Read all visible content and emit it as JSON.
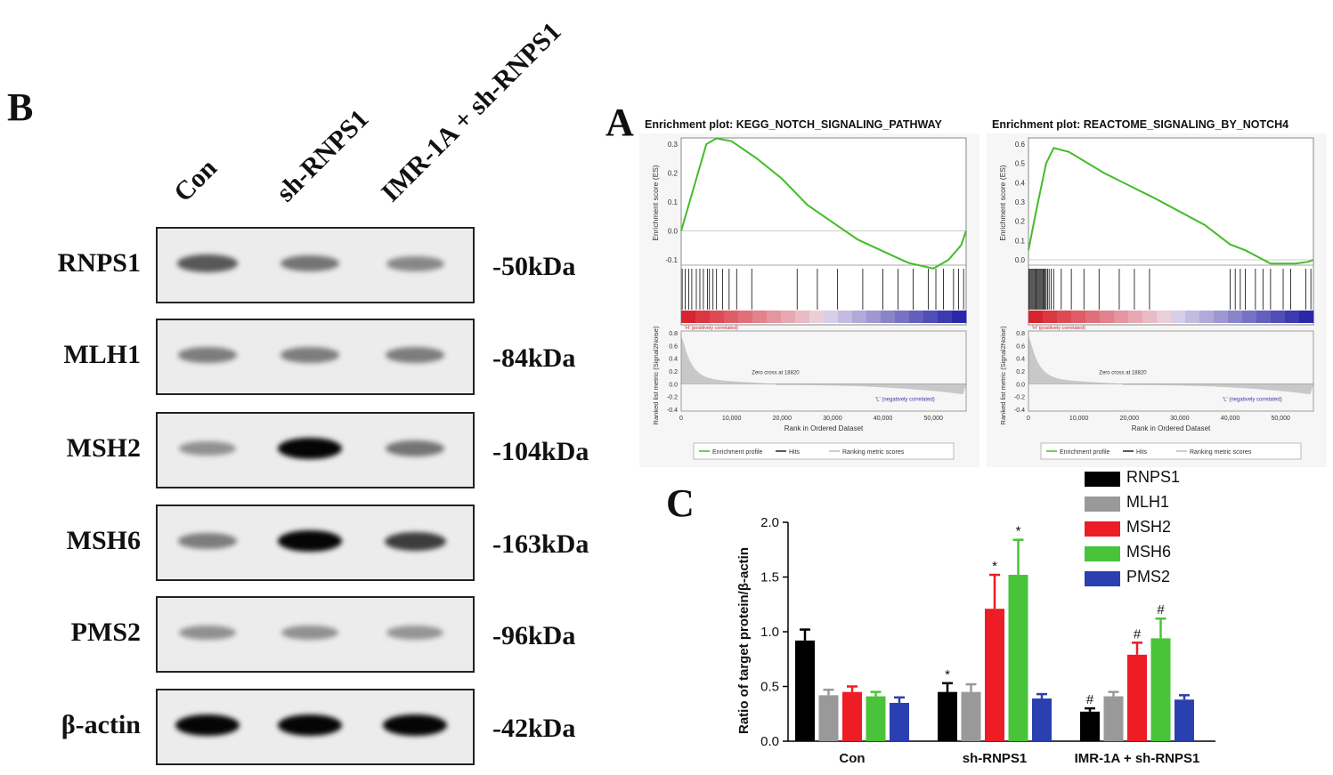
{
  "panel_b": {
    "letter": "B",
    "lanes": [
      "Con",
      "sh-RNPS1",
      "IMR-1A + sh-RNPS1"
    ],
    "blots": [
      {
        "name": "RNPS1",
        "mw": "-50kDa",
        "intensity": [
          0.55,
          0.4,
          0.3
        ]
      },
      {
        "name": "MLH1",
        "mw": "-84kDa",
        "intensity": [
          0.35,
          0.35,
          0.35
        ]
      },
      {
        "name": "MSH2",
        "mw": "-104kDa",
        "intensity": [
          0.25,
          1.0,
          0.4
        ]
      },
      {
        "name": "MSH6",
        "mw": "-163kDa",
        "intensity": [
          0.35,
          1.0,
          0.7
        ]
      },
      {
        "name": "PMS2",
        "mw": "-96kDa",
        "intensity": [
          0.25,
          0.25,
          0.22
        ]
      },
      {
        "name": "β-actin",
        "mw": "-42kDa",
        "intensity": [
          1.0,
          1.0,
          1.0
        ]
      }
    ]
  },
  "panel_a": {
    "letter": "A",
    "plots": [
      {
        "title": "Enrichment plot: KEGG_NOTCH_SIGNALING_PATHWAY",
        "es_ticks": [
          "0.3",
          "0.2",
          "0.1",
          "0.0",
          "-0.1"
        ],
        "es_profile": [
          [
            0,
            0.0
          ],
          [
            2000,
            0.12
          ],
          [
            5000,
            0.3
          ],
          [
            7000,
            0.32
          ],
          [
            10000,
            0.31
          ],
          [
            15000,
            0.25
          ],
          [
            20000,
            0.18
          ],
          [
            25000,
            0.09
          ],
          [
            30000,
            0.03
          ],
          [
            35000,
            -0.03
          ],
          [
            40000,
            -0.07
          ],
          [
            45000,
            -0.11
          ],
          [
            50000,
            -0.13
          ],
          [
            53000,
            -0.1
          ],
          [
            55500,
            -0.05
          ],
          [
            56500,
            0.0
          ]
        ],
        "hits": [
          200,
          800,
          1500,
          2100,
          3000,
          3700,
          4400,
          5200,
          5600,
          6300,
          7000,
          8200,
          9500,
          11000,
          14000,
          23000,
          27000,
          31000,
          36000,
          40000,
          43000,
          46000,
          49000,
          50500,
          52000,
          54000,
          55000,
          56000
        ]
      },
      {
        "title": "Enrichment plot: REACTOME_SIGNALING_BY_NOTCH4",
        "es_ticks": [
          "0.6",
          "0.5",
          "0.4",
          "0.3",
          "0.2",
          "0.1",
          "0.0"
        ],
        "es_profile": [
          [
            0,
            0.05
          ],
          [
            1500,
            0.25
          ],
          [
            3500,
            0.5
          ],
          [
            5000,
            0.58
          ],
          [
            8000,
            0.56
          ],
          [
            15000,
            0.45
          ],
          [
            25000,
            0.32
          ],
          [
            35000,
            0.18
          ],
          [
            40000,
            0.08
          ],
          [
            43000,
            0.05
          ],
          [
            48000,
            -0.02
          ],
          [
            53000,
            -0.02
          ],
          [
            55500,
            -0.01
          ],
          [
            56500,
            0.0
          ]
        ],
        "hits": [
          100,
          300,
          500,
          700,
          900,
          1100,
          1300,
          1500,
          1700,
          1900,
          2100,
          2300,
          2500,
          2700,
          2900,
          3100,
          3300,
          3500,
          3800,
          4100,
          4500,
          5000,
          6500,
          8500,
          11000,
          14000,
          18000,
          21000,
          24000,
          40000,
          41000,
          42000,
          43000,
          45000,
          46500,
          48000,
          50500,
          52000,
          55000,
          56000
        ]
      }
    ],
    "es_axis_label": "Enrichment score (ES)",
    "metric_axis_label": "Ranked list metric (Signal2Noise)",
    "metric_ticks": [
      "0.8",
      "0.6",
      "0.4",
      "0.2",
      "0.0",
      "-0.2",
      "-0.4"
    ],
    "x_ticks": [
      "0",
      "10,000",
      "20,000",
      "30,000",
      "40,000",
      "50,000"
    ],
    "x_label": "Rank in Ordered Dataset",
    "pos_label": "'H' (positively correlated)",
    "neg_label": "'L' (negatively correlated)",
    "zero_cross": "Zero cross at 18820",
    "legend": [
      "Enrichment profile",
      "Hits",
      "Ranking metric scores"
    ],
    "colors": {
      "profile": "#44bb2a",
      "bar_red": "#d8242f",
      "bar_blue": "#2a28a8"
    }
  },
  "chart_data": {
    "letter": "C",
    "type": "bar",
    "categories": [
      "Con",
      "sh-RNPS1",
      "IMR-1A + sh-RNPS1"
    ],
    "ylabel": "Ratio of target protein/β-actin",
    "ylim": [
      0,
      2.0
    ],
    "yticks": [
      "0.0",
      "0.5",
      "1.0",
      "1.5",
      "2.0"
    ],
    "series": [
      {
        "name": "RNPS1",
        "color": "#000000",
        "values": [
          0.92,
          0.45,
          0.27
        ],
        "errors": [
          0.1,
          0.08,
          0.03
        ],
        "marks": [
          "",
          "*",
          "#"
        ]
      },
      {
        "name": "MLH1",
        "color": "#999999",
        "values": [
          0.42,
          0.45,
          0.41
        ],
        "errors": [
          0.05,
          0.07,
          0.04
        ],
        "marks": [
          "",
          "",
          ""
        ]
      },
      {
        "name": "MSH2",
        "color": "#ee1c24",
        "values": [
          0.45,
          1.21,
          0.79
        ],
        "errors": [
          0.05,
          0.31,
          0.11
        ],
        "marks": [
          "",
          "*",
          "#"
        ]
      },
      {
        "name": "MSH6",
        "color": "#49c33a",
        "values": [
          0.41,
          1.52,
          0.94
        ],
        "errors": [
          0.04,
          0.32,
          0.18
        ],
        "marks": [
          "",
          "*",
          "#"
        ]
      },
      {
        "name": "PMS2",
        "color": "#2a3fb0",
        "values": [
          0.35,
          0.39,
          0.38
        ],
        "errors": [
          0.05,
          0.04,
          0.04
        ],
        "marks": [
          "",
          "",
          ""
        ]
      }
    ]
  }
}
